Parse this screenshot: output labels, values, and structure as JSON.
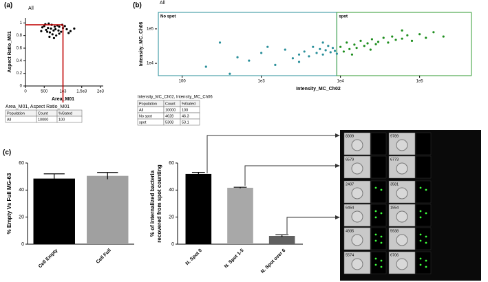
{
  "panels": [
    "(a)",
    "(b)",
    "(c)"
  ],
  "chart_data": [
    {
      "type": "scatter",
      "title": "All",
      "xlabel": "Area_M01",
      "ylabel": "Aspect Ratio_M01",
      "xlim": [
        0,
        2000
      ],
      "ylim": [
        0,
        1.08
      ],
      "xticks": [
        0,
        500,
        {
          "value": 1000,
          "label": "1e3"
        },
        {
          "value": 1500,
          "label": "1.5e3"
        },
        {
          "value": 2000,
          "label": "2e3"
        }
      ],
      "yticks": [
        0,
        0.2,
        0.4,
        0.6,
        0.8,
        1
      ],
      "gate": {
        "x": 1000,
        "y": 0.97,
        "color": "#c00000"
      },
      "series": [
        {
          "color": "#000000",
          "x": [
            500,
            600,
            700,
            800,
            900,
            650,
            750,
            850,
            550,
            950,
            1000,
            1100,
            1200,
            450,
            620,
            720,
            820,
            680,
            580,
            780,
            880,
            1050,
            1150,
            1300,
            420,
            530,
            980,
            760,
            640,
            900
          ],
          "values": [
            0.95,
            0.92,
            0.97,
            0.9,
            0.94,
            0.85,
            0.88,
            0.96,
            0.89,
            0.86,
            0.92,
            0.9,
            0.87,
            0.93,
            0.99,
            0.82,
            0.8,
            0.91,
            0.86,
            0.94,
            0.88,
            0.95,
            0.84,
            0.91,
            0.87,
            0.98,
            0.97,
            0.76,
            0.78,
            0.83
          ]
        }
      ]
    },
    {
      "type": "scatter",
      "title": "All",
      "xlabel": "Intensity_MC_Ch02",
      "ylabel": "Intensity_MC_Ch06",
      "log_x": true,
      "log_y": true,
      "xlim": [
        48,
        575000
      ],
      "ylim": [
        4400,
        300000
      ],
      "xticks": [
        100,
        {
          "value": 1000,
          "label": "1e3"
        },
        {
          "value": 10000,
          "label": "1e4"
        },
        {
          "value": 100000,
          "label": "1e5"
        }
      ],
      "yticks": [
        {
          "value": 10000,
          "label": "1e4"
        },
        {
          "value": 100000,
          "label": "1e5"
        }
      ],
      "gates": [
        {
          "name": "No spot",
          "range": [
            50,
            9000
          ],
          "color": "#2a8f9a"
        },
        {
          "name": "spot",
          "range": [
            9000,
            450000
          ],
          "color": "#2f9a2f"
        }
      ],
      "series": [
        {
          "color": "#2a8f9a",
          "x": [
            200,
            300,
            500,
            700,
            1000,
            1500,
            2000,
            2500,
            3000,
            3500,
            4000,
            4500,
            5000,
            5500,
            6000,
            6500,
            7000,
            7500,
            8000,
            8500,
            400,
            1200,
            3000,
            6000,
            9000
          ],
          "values": [
            8000,
            40000,
            15000,
            12000,
            20000,
            9000,
            25000,
            14000,
            18000,
            22000,
            16000,
            30000,
            20000,
            26000,
            18000,
            24000,
            32000,
            21000,
            28000,
            23000,
            5000,
            30000,
            11000,
            40000,
            19000
          ]
        },
        {
          "color": "#1f8f1f",
          "x": [
            10000,
            11000,
            12000,
            13000,
            15000,
            16000,
            18000,
            20000,
            22000,
            25000,
            28000,
            30000,
            35000,
            40000,
            45000,
            50000,
            60000,
            70000,
            80000,
            100000,
            120000,
            150000,
            200000,
            14000,
            24000,
            60000
          ],
          "values": [
            30000,
            22000,
            40000,
            26000,
            35000,
            28000,
            45000,
            32000,
            38000,
            50000,
            36000,
            42000,
            55000,
            40000,
            60000,
            48000,
            52000,
            65000,
            45000,
            70000,
            55000,
            80000,
            60000,
            18000,
            25000,
            90000
          ]
        }
      ]
    },
    {
      "type": "bar",
      "ylabel": "% Empty Vs Full MG-63",
      "categories": [
        "Cell Empty",
        "Cell Full"
      ],
      "values": [
        48.5,
        50.5
      ],
      "errors": [
        3.5,
        2.5
      ],
      "colors": [
        "#000000",
        "#a0a0a0"
      ],
      "ylim": [
        0,
        60
      ],
      "yticks": [
        0,
        20,
        40,
        60
      ]
    },
    {
      "type": "bar",
      "ylabel": [
        "% of internalized bacteria",
        "recovered from spot counting"
      ],
      "categories": [
        "N. Spot 0",
        "N. Spot 1-5",
        "N. Spot over 6"
      ],
      "values": [
        51.9,
        41.7,
        6.1
      ],
      "errors": [
        1.2,
        0.4,
        0.8
      ],
      "colors": [
        "#000000",
        "#a8a8a8",
        "#606060"
      ],
      "ylim": [
        0,
        60
      ],
      "yticks": [
        0,
        20,
        40,
        60
      ]
    }
  ],
  "tables": [
    {
      "title": "Area_M01, Aspect Ratio_M01",
      "header": [
        "Population",
        "Count",
        "%Gated"
      ],
      "rows": [
        [
          "All",
          10000,
          100
        ]
      ]
    },
    {
      "title": "Intensity_MC_Ch02, Intensity_MC_Ch06",
      "header": [
        "Population",
        "Count",
        "%Gated"
      ],
      "rows": [
        [
          "All",
          10000,
          100
        ],
        [
          "No spot",
          4628,
          46.3
        ],
        [
          "spot",
          5308,
          53.1
        ]
      ]
    }
  ],
  "images": {
    "tiles": [
      "8309",
      "9789",
      "6579",
      "6773",
      "2407",
      "3581",
      "6454",
      "1554",
      "4935",
      "5938",
      "5574",
      "6706"
    ]
  }
}
